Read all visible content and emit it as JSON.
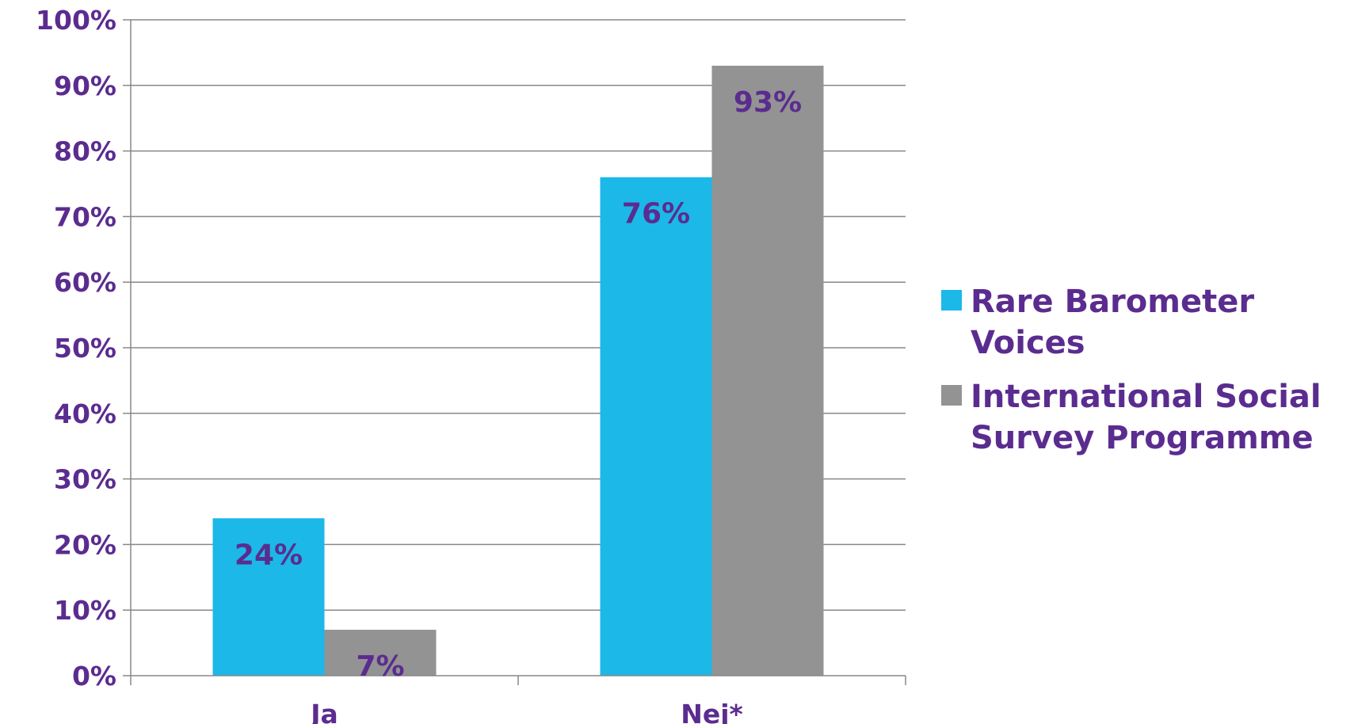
{
  "colors": {
    "text": "#5b2c8f",
    "grid": "#888888",
    "axis": "#888888"
  },
  "chart_data": {
    "type": "bar",
    "categories": [
      "Ja",
      "Nej*"
    ],
    "series": [
      {
        "name": "Rare Barometer Voices",
        "values": [
          24,
          76
        ],
        "labels": [
          "24%",
          "76%"
        ],
        "color": "#1bb8e8"
      },
      {
        "name": "International Social Survey Programme",
        "values": [
          7,
          93
        ],
        "labels": [
          "7%",
          "93%"
        ],
        "color": "#939393"
      }
    ],
    "y_ticks": [
      "0%",
      "10%",
      "20%",
      "30%",
      "40%",
      "50%",
      "60%",
      "70%",
      "80%",
      "90%",
      "100%"
    ],
    "ylim": [
      0,
      100
    ],
    "grid": true,
    "legend": {
      "position": "right",
      "entries": [
        {
          "lines": [
            "Rare Barometer",
            "Voices"
          ]
        },
        {
          "lines": [
            "International Social",
            "Survey Programme"
          ]
        }
      ]
    }
  }
}
